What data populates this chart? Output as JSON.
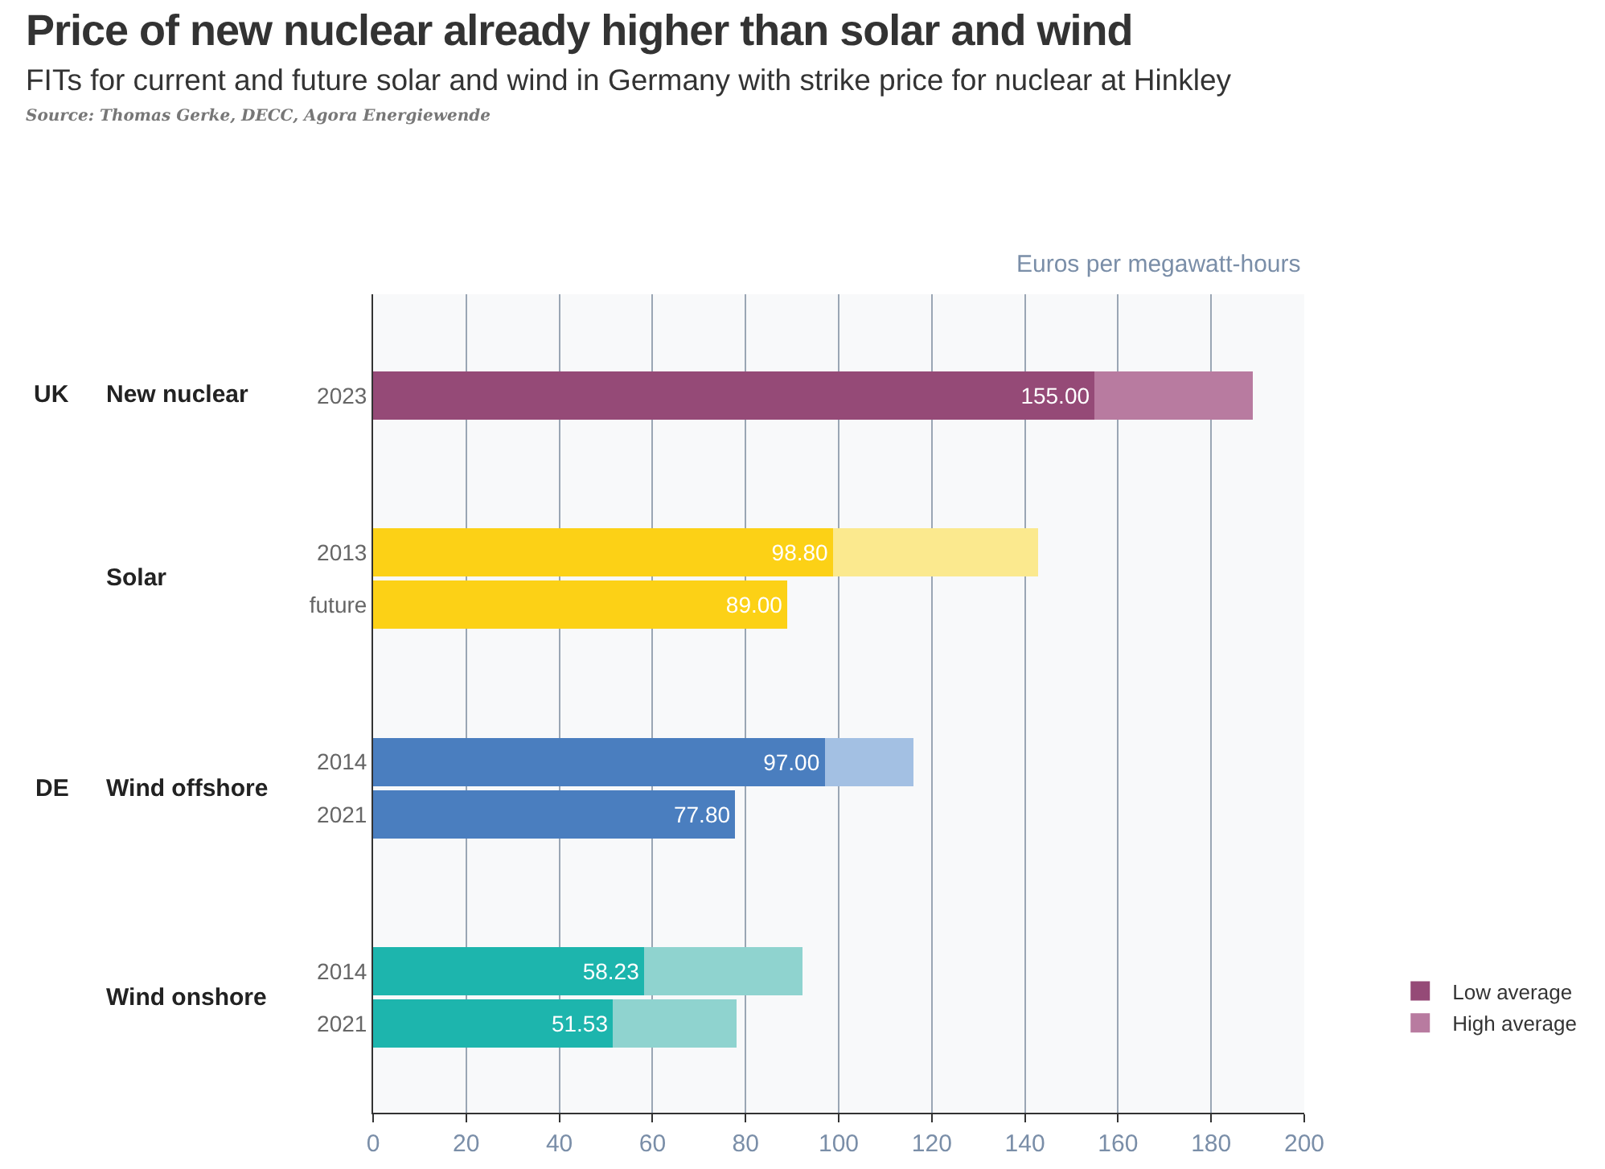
{
  "chart_data": {
    "type": "bar",
    "orientation": "horizontal",
    "stacked": true,
    "title": "Price of new nuclear already higher than solar and wind",
    "subtitle": "FITs for current and future solar and wind in Germany with strike price for nuclear at Hinkley",
    "xlabel": "Euros per megawatt-hours",
    "annotations": [
      "UK",
      "New nuclear",
      "Solar",
      "DE",
      "Wind offshore",
      "Wind onshore",
      "Source: Thomas Gerke, DECC, Agora Energiewende"
    ],
    "categories": [
      "2023",
      null,
      null,
      "2013",
      "future",
      null,
      null,
      "2014",
      "2021",
      null,
      null,
      "2014",
      "2021"
    ],
    "series": [
      {
        "name": "Low average",
        "colors": [
          "#954a77",
          null,
          null,
          "#fcd116",
          "#fcd116",
          null,
          null,
          "#4a7ebf",
          "#4a7ebf",
          null,
          null,
          "#1db5ad",
          "#1db5ad"
        ],
        "values": [
          155,
          null,
          null,
          98.8,
          89,
          null,
          null,
          97,
          77.8,
          null,
          null,
          58.23,
          51.53
        ],
        "value_labels": [
          "155.00",
          null,
          null,
          "98.80",
          "89.00",
          null,
          null,
          "97.00",
          "77.80",
          null,
          null,
          "58.23",
          "51.53"
        ]
      },
      {
        "name": "High average",
        "colors": [
          "#b87ba0",
          null,
          null,
          "#fbe98e",
          null,
          null,
          null,
          "#a3c0e3",
          null,
          null,
          null,
          "#8fd3cf",
          "#8fd3cf"
        ],
        "values": [
          34,
          null,
          null,
          44,
          null,
          null,
          null,
          19,
          null,
          null,
          null,
          34,
          26.5
        ]
      }
    ],
    "xlim": [
      0,
      200
    ],
    "xticks": [
      0,
      20,
      40,
      60,
      80,
      100,
      120,
      140,
      160,
      180,
      200
    ],
    "grid": "x",
    "legend": "bottom right"
  }
}
